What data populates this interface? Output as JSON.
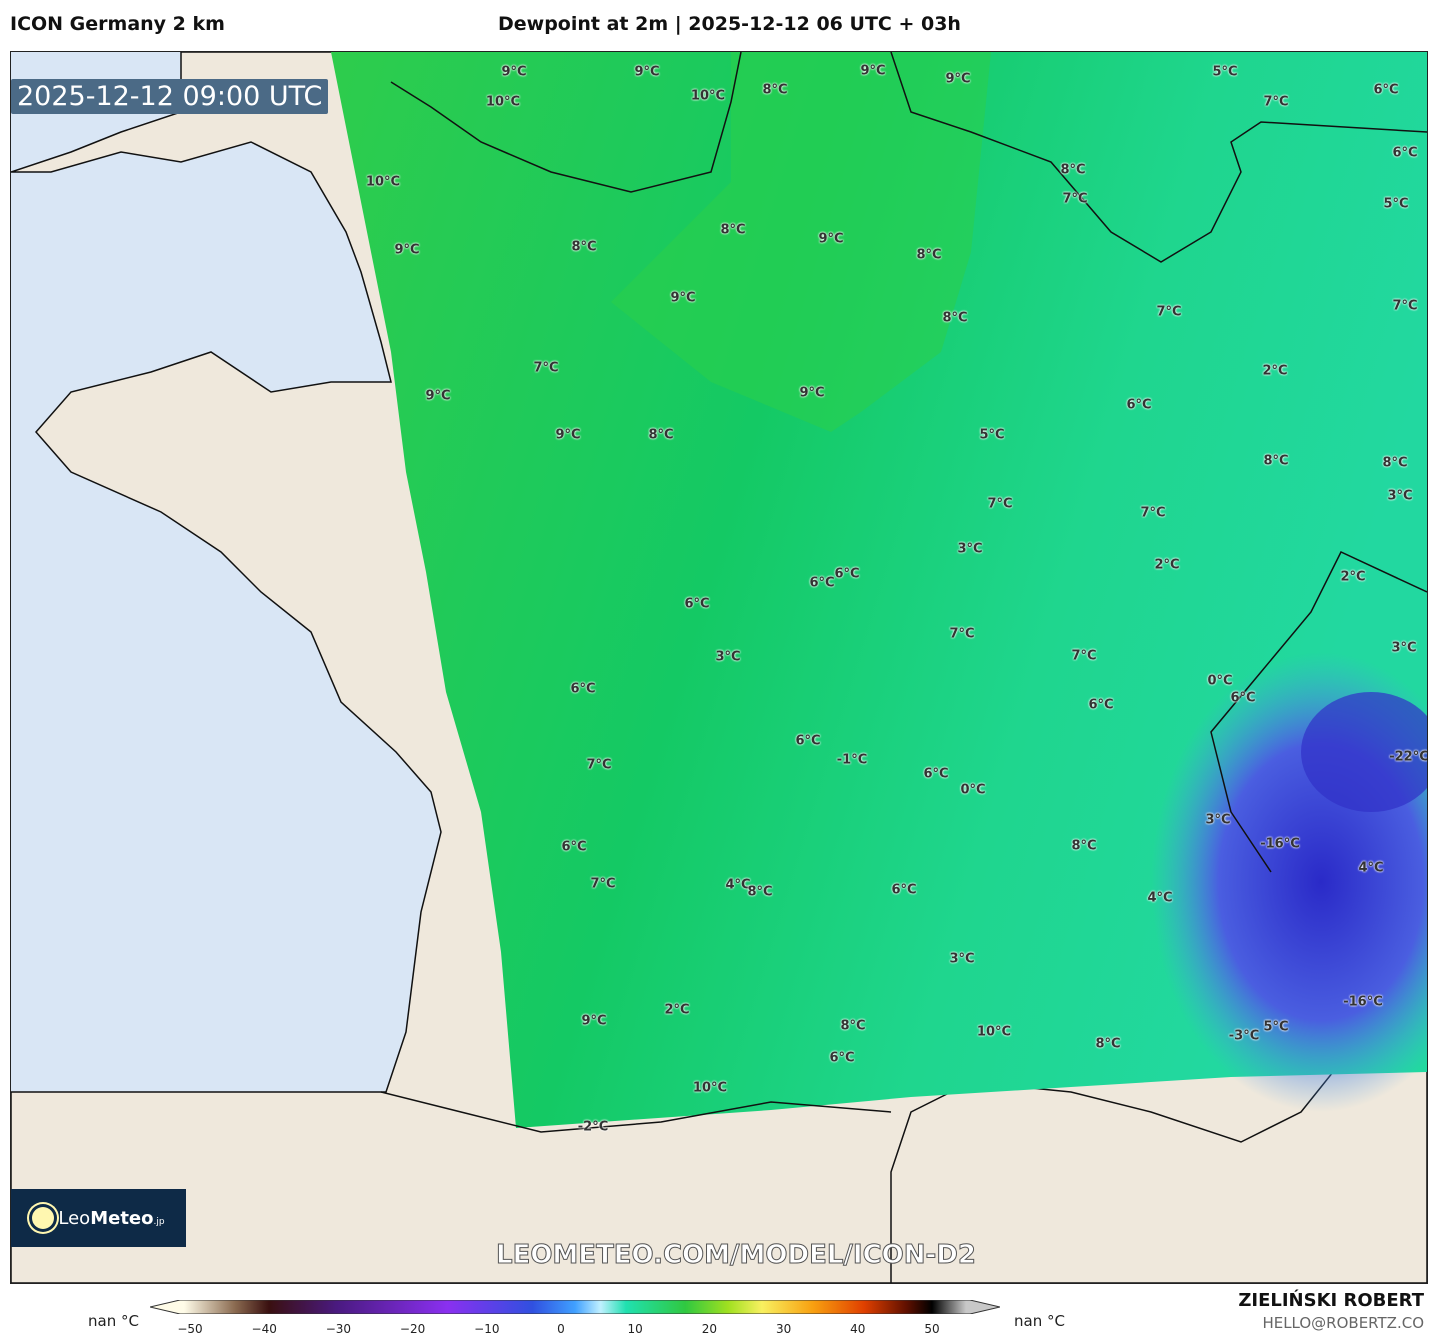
{
  "header": {
    "model": "ICON Germany 2 km",
    "title": "Dewpoint at 2m | 2025-12-12 06 UTC + 03h"
  },
  "map": {
    "valid_time": "2025-12-12 09:00 UTC",
    "watermark": "LEOMETEO.COM/MODEL/ICON-D2",
    "colors": {
      "ocean": "#d9e6f5",
      "land": "#efe8dc",
      "warm_green": "#2ecc4c",
      "teal": "#1fd68e",
      "alps_blue": "#3a3ad0"
    },
    "labels": [
      "9°C",
      "9°C",
      "10°C",
      "10°C",
      "8°C",
      "9°C",
      "9°C",
      "5°C",
      "7°C",
      "6°C",
      "10°C",
      "8°C",
      "7°C",
      "6°C",
      "5°C",
      "9°C",
      "8°C",
      "8°C",
      "9°C",
      "8°C",
      "9°C",
      "8°C",
      "7°C",
      "7°C",
      "9°C",
      "2°C",
      "6°C",
      "9°C",
      "9°C",
      "8°C",
      "5°C",
      "7°C",
      "3°C",
      "7°C",
      "7°C",
      "8°C",
      "8°C",
      "3°C",
      "6°C",
      "6°C",
      "2°C",
      "2°C",
      "6°C",
      "7°C",
      "7°C",
      "3°C",
      "3°C",
      "6°C",
      "0°C",
      "6°C",
      "6°C",
      "7°C",
      "6°C",
      "-1°C",
      "6°C",
      "0°C",
      "-22°C",
      "3°C",
      "6°C",
      "8°C",
      "-16°C",
      "7°C",
      "4°C",
      "8°C",
      "4°C",
      "4°C",
      "6°C",
      "3°C",
      "-16°C",
      "9°C",
      "2°C",
      "8°C",
      "10°C",
      "5°C",
      "-3°C",
      "8°C",
      "6°C",
      "10°C",
      "-2°C"
    ]
  },
  "logo": {
    "text_light": "Leo",
    "text_bold": "Meteo",
    "suffix": ".jp"
  },
  "colorbar": {
    "ticks": [
      "−50",
      "−40",
      "−30",
      "−20",
      "−10",
      "0",
      "10",
      "20",
      "30",
      "40",
      "50"
    ],
    "left_label": "nan °C",
    "right_label": "nan °C"
  },
  "credits": {
    "author": "ZIELIŃSKI ROBERT",
    "email": "HELLO@ROBERTZ.CO"
  }
}
